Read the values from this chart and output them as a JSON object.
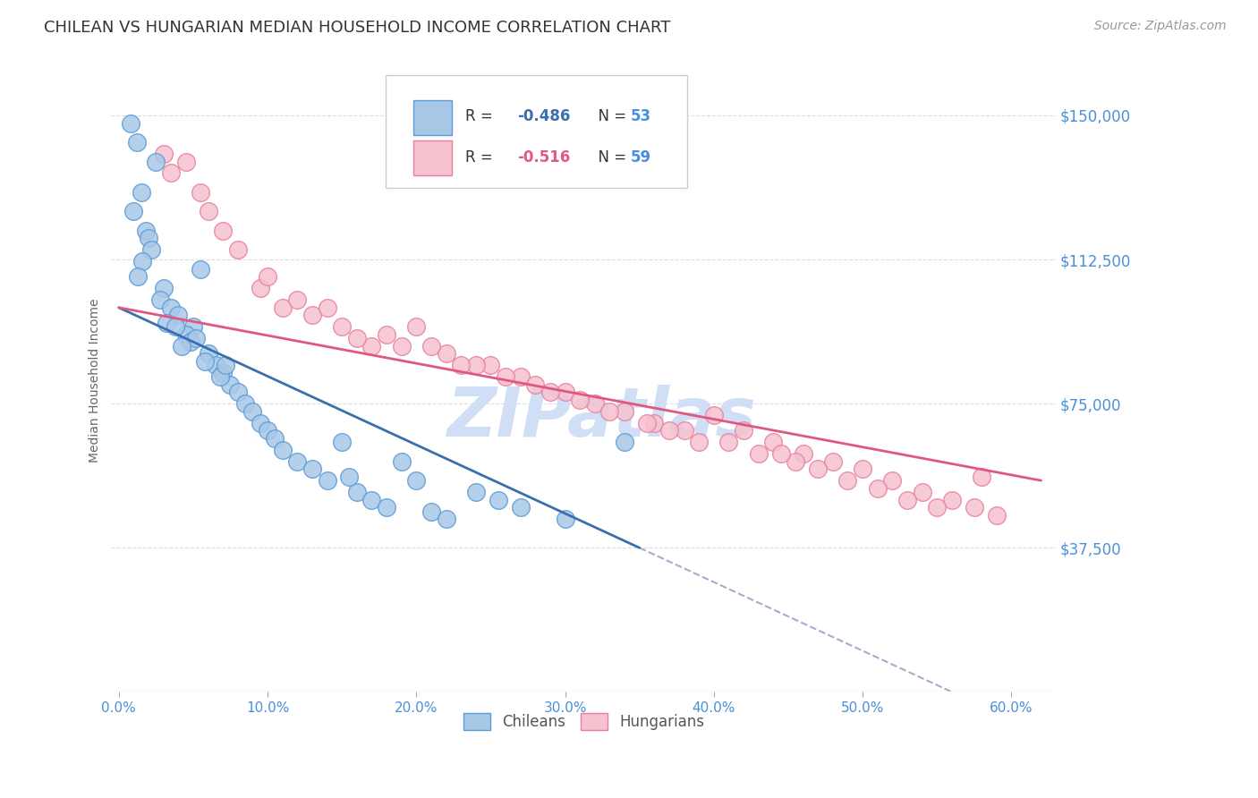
{
  "title": "CHILEAN VS HUNGARIAN MEDIAN HOUSEHOLD INCOME CORRELATION CHART",
  "source": "Source: ZipAtlas.com",
  "ylabel": "Median Household Income",
  "yticks": [
    0,
    37500,
    75000,
    112500,
    150000
  ],
  "ytick_labels": [
    "",
    "$37,500",
    "$75,000",
    "$112,500",
    "$150,000"
  ],
  "ylim": [
    0,
    162000
  ],
  "xlim": [
    -0.5,
    63.0
  ],
  "xlabel_vals": [
    0.0,
    10.0,
    20.0,
    30.0,
    40.0,
    50.0,
    60.0
  ],
  "blue_scatter_color": "#a8c8e8",
  "blue_edge_color": "#5b9bd5",
  "pink_scatter_color": "#f5c2cf",
  "pink_edge_color": "#e87fa0",
  "trend_blue_color": "#3a6fad",
  "trend_pink_color": "#e05880",
  "dash_color": "#aaaacc",
  "watermark_color": "#d0dff5",
  "background_color": "#ffffff",
  "grid_color": "#dddddd",
  "title_color": "#333333",
  "axis_tick_color": "#4a90d9",
  "source_color": "#999999",
  "chilean_x": [
    1.2,
    0.8,
    1.5,
    2.5,
    1.0,
    1.8,
    2.0,
    2.2,
    1.6,
    1.3,
    3.0,
    2.8,
    3.5,
    4.0,
    3.2,
    5.0,
    4.5,
    4.8,
    5.5,
    6.0,
    5.2,
    4.2,
    6.5,
    7.0,
    7.5,
    8.0,
    5.8,
    8.5,
    9.0,
    9.5,
    10.0,
    10.5,
    11.0,
    12.0,
    13.0,
    14.0,
    15.0,
    16.0,
    17.0,
    18.0,
    20.0,
    21.0,
    22.0,
    15.5,
    6.8,
    7.2,
    3.8,
    19.0,
    24.0,
    25.5,
    27.0,
    30.0,
    34.0
  ],
  "chilean_y": [
    143000,
    148000,
    130000,
    138000,
    125000,
    120000,
    118000,
    115000,
    112000,
    108000,
    105000,
    102000,
    100000,
    98000,
    96000,
    95000,
    93000,
    91000,
    110000,
    88000,
    92000,
    90000,
    85000,
    83000,
    80000,
    78000,
    86000,
    75000,
    73000,
    70000,
    68000,
    66000,
    63000,
    60000,
    58000,
    55000,
    65000,
    52000,
    50000,
    48000,
    55000,
    47000,
    45000,
    56000,
    82000,
    85000,
    95000,
    60000,
    52000,
    50000,
    48000,
    45000,
    65000
  ],
  "hungarian_x": [
    3.0,
    5.5,
    8.0,
    9.5,
    13.0,
    15.0,
    17.0,
    20.0,
    22.0,
    25.0,
    27.0,
    3.5,
    6.0,
    10.0,
    14.0,
    18.0,
    21.0,
    24.0,
    26.0,
    28.0,
    4.5,
    7.0,
    11.0,
    16.0,
    19.0,
    23.0,
    30.0,
    32.0,
    34.0,
    36.0,
    38.0,
    40.0,
    42.0,
    44.0,
    46.0,
    48.0,
    50.0,
    52.0,
    54.0,
    56.0,
    57.5,
    59.0,
    12.0,
    29.0,
    33.0,
    35.5,
    37.0,
    41.0,
    43.0,
    45.5,
    47.0,
    49.0,
    51.0,
    53.0,
    55.0,
    58.0,
    44.5,
    39.0,
    31.0
  ],
  "hungarian_y": [
    140000,
    130000,
    115000,
    105000,
    98000,
    95000,
    90000,
    95000,
    88000,
    85000,
    82000,
    135000,
    125000,
    108000,
    100000,
    93000,
    90000,
    85000,
    82000,
    80000,
    138000,
    120000,
    100000,
    92000,
    90000,
    85000,
    78000,
    75000,
    73000,
    70000,
    68000,
    72000,
    68000,
    65000,
    62000,
    60000,
    58000,
    55000,
    52000,
    50000,
    48000,
    46000,
    102000,
    78000,
    73000,
    70000,
    68000,
    65000,
    62000,
    60000,
    58000,
    55000,
    53000,
    50000,
    48000,
    56000,
    62000,
    65000,
    76000
  ],
  "blue_trend_x0": 0.0,
  "blue_trend_x1": 35.0,
  "pink_trend_x0": 0.0,
  "pink_trend_x1": 62.0,
  "dash_trend_x0": 35.0,
  "dash_trend_x1": 63.0
}
